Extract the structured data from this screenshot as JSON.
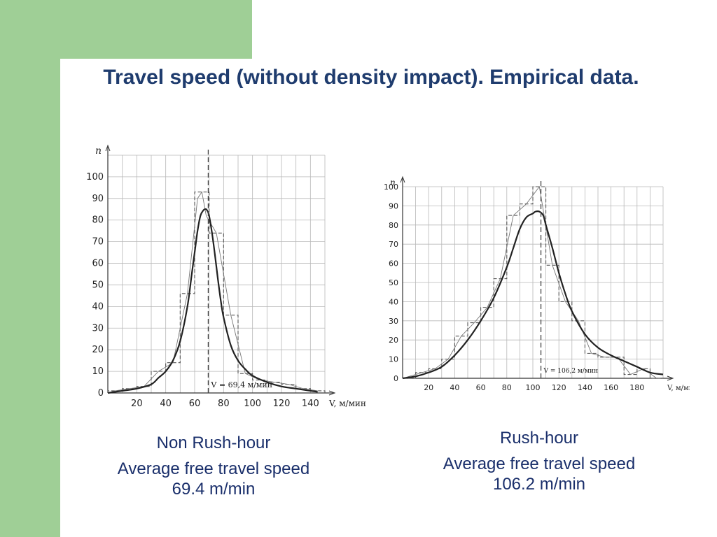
{
  "slide": {
    "title": "Travel speed (without density impact). Empirical data."
  },
  "captions": {
    "left": {
      "label": "Non Rush-hour",
      "line1": "Average free travel speed",
      "line2": "69.4 m/min"
    },
    "right": {
      "label": "Rush-hour",
      "line1": "Average free travel speed",
      "line2": "106.2 m/min"
    }
  },
  "colors": {
    "side_band": "#9fcf96",
    "title": "#1f3c6e",
    "caption": "#1a2f6b",
    "curve": "#222222",
    "grid": "#b8b8b8"
  },
  "chart_data": [
    {
      "type": "line",
      "ylabel": "n",
      "xlabel": "V, м/мин",
      "xlim": [
        0,
        150
      ],
      "ylim": [
        0,
        110
      ],
      "x_ticks": [
        20,
        40,
        60,
        80,
        100,
        120,
        140
      ],
      "y_ticks": [
        0,
        10,
        20,
        30,
        40,
        50,
        60,
        70,
        80,
        90,
        100
      ],
      "grid": true,
      "mean_annotation": "V = 69,4 м/мин",
      "mean_value": 69.4,
      "series": [
        {
          "style": "histogram-dashed",
          "bins": [
            [
              0,
              10,
              1
            ],
            [
              10,
              20,
              2
            ],
            [
              20,
              30,
              3
            ],
            [
              30,
              40,
              10
            ],
            [
              40,
              50,
              14
            ],
            [
              50,
              60,
              46
            ],
            [
              60,
              70,
              93
            ],
            [
              70,
              80,
              74
            ],
            [
              80,
              90,
              36
            ],
            [
              90,
              100,
              9
            ],
            [
              100,
              110,
              6
            ],
            [
              110,
              120,
              5
            ],
            [
              120,
              130,
              4
            ],
            [
              130,
              140,
              2
            ],
            [
              140,
              150,
              1
            ]
          ]
        },
        {
          "style": "polygon-thin",
          "x": [
            0,
            5,
            15,
            25,
            35,
            45,
            55,
            62,
            65,
            68,
            75,
            85,
            95,
            105,
            115,
            125,
            135,
            145
          ],
          "y": [
            0,
            1,
            2,
            3,
            10,
            14,
            46,
            90,
            93,
            82,
            74,
            36,
            9,
            6,
            5,
            4,
            2,
            1
          ]
        },
        {
          "style": "fitted-curve",
          "x": [
            0,
            10,
            20,
            30,
            35,
            40,
            45,
            50,
            55,
            58,
            60,
            62,
            64,
            66,
            67,
            68,
            69,
            70,
            72,
            74,
            76,
            78,
            80,
            85,
            90,
            95,
            100,
            110,
            120,
            130,
            140,
            145
          ],
          "y": [
            0,
            1,
            2,
            4,
            7,
            10,
            15,
            24,
            40,
            55,
            65,
            75,
            82,
            84.5,
            85,
            85,
            84,
            82,
            74,
            64,
            53,
            43,
            35,
            22,
            15,
            11,
            8,
            5,
            3,
            2,
            1,
            0.5
          ]
        }
      ]
    },
    {
      "type": "line",
      "ylabel": "n",
      "xlabel": "V, м/мин",
      "xlim": [
        0,
        200
      ],
      "ylim": [
        0,
        100
      ],
      "x_ticks": [
        20,
        40,
        60,
        80,
        100,
        120,
        140,
        160,
        180
      ],
      "y_ticks": [
        0,
        10,
        20,
        30,
        40,
        50,
        60,
        70,
        80,
        90,
        100
      ],
      "grid": true,
      "mean_annotation": "V = 106,2 м/мин",
      "mean_value": 106.2,
      "series": [
        {
          "style": "histogram-dashed",
          "bins": [
            [
              0,
              10,
              0
            ],
            [
              10,
              20,
              3
            ],
            [
              20,
              30,
              5
            ],
            [
              30,
              40,
              10
            ],
            [
              40,
              50,
              22
            ],
            [
              50,
              60,
              29
            ],
            [
              60,
              70,
              37
            ],
            [
              70,
              80,
              52
            ],
            [
              80,
              90,
              85
            ],
            [
              90,
              100,
              91
            ],
            [
              100,
              110,
              100
            ],
            [
              110,
              120,
              59
            ],
            [
              120,
              130,
              40
            ],
            [
              130,
              140,
              30
            ],
            [
              140,
              150,
              13
            ],
            [
              150,
              160,
              11
            ],
            [
              160,
              170,
              11
            ],
            [
              170,
              180,
              2
            ],
            [
              180,
              190,
              5
            ],
            [
              190,
              200,
              0
            ]
          ]
        },
        {
          "style": "polygon-thin",
          "x": [
            0,
            5,
            15,
            25,
            35,
            45,
            55,
            65,
            75,
            85,
            95,
            105,
            115,
            125,
            135,
            145,
            155,
            165,
            175,
            185,
            195
          ],
          "y": [
            0,
            1,
            3,
            5,
            10,
            22,
            29,
            37,
            52,
            85,
            91,
            100,
            59,
            40,
            30,
            13,
            11,
            11,
            2,
            5,
            0
          ]
        },
        {
          "style": "fitted-curve",
          "x": [
            0,
            10,
            20,
            30,
            40,
            50,
            60,
            70,
            80,
            85,
            90,
            95,
            100,
            102,
            105,
            108,
            110,
            115,
            120,
            125,
            130,
            140,
            150,
            160,
            170,
            180,
            190,
            200
          ],
          "y": [
            0,
            1,
            3,
            6,
            12,
            20,
            30,
            42,
            58,
            68,
            78,
            84,
            86,
            87,
            87,
            85,
            80,
            68,
            55,
            44,
            35,
            23,
            16,
            12,
            9,
            6,
            3,
            2
          ]
        }
      ]
    }
  ]
}
